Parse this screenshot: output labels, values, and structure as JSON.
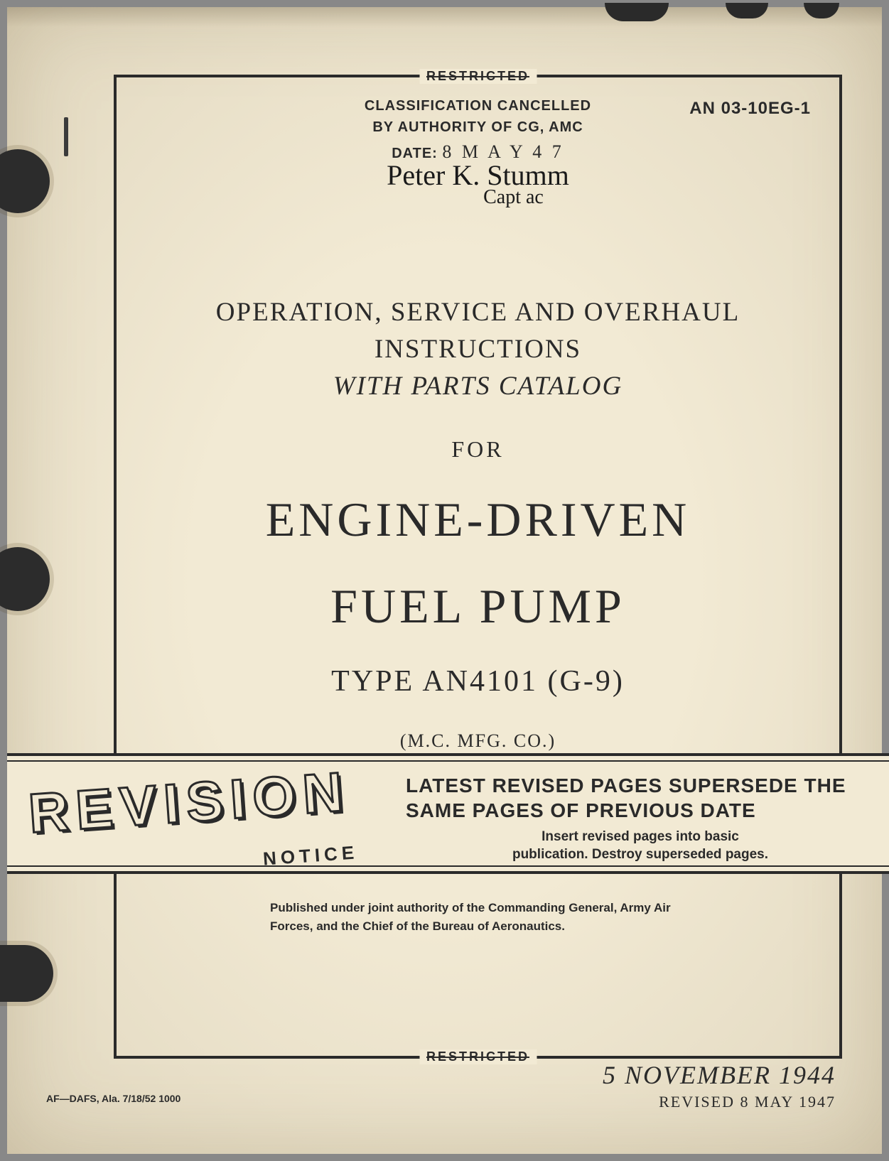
{
  "colors": {
    "paper": "#f2ead4",
    "ink": "#2a2a2a",
    "back": "#888888"
  },
  "restricted": "RESTRICTED",
  "doc_number": "AN 03-10EG-1",
  "classification": {
    "line1": "CLASSIFICATION CANCELLED",
    "line2": "BY AUTHORITY OF CG, AMC",
    "date_label": "DATE:",
    "date_value": "8  M A Y   4 7"
  },
  "signature": {
    "line1": "Peter K. Stumm",
    "line2": "Capt ac"
  },
  "title": {
    "ops1": "OPERATION, SERVICE AND OVERHAUL",
    "ops2": "INSTRUCTIONS",
    "ops3": "WITH PARTS CATALOG",
    "for": "FOR",
    "big1": "ENGINE-DRIVEN",
    "big2": "FUEL PUMP",
    "type": "TYPE AN4101 (G-9)",
    "mfg": "(M.C. MFG. CO.)"
  },
  "banner": {
    "revision": "REVISION",
    "notice": "NOTICE",
    "headline": "LATEST REVISED PAGES SUPERSEDE THE SAME PAGES OF PREVIOUS DATE",
    "sub1": "Insert revised pages into basic",
    "sub2": "publication. Destroy superseded pages."
  },
  "published": "Published under joint authority of the Commanding General, Army Air Forces, and the Chief of the Bureau of Aeronautics.",
  "footer": {
    "left": "AF—DAFS, Ala. 7/18/52  1000",
    "date_main": "5 NOVEMBER 1944",
    "date_rev": "REVISED 8 MAY 1947"
  }
}
